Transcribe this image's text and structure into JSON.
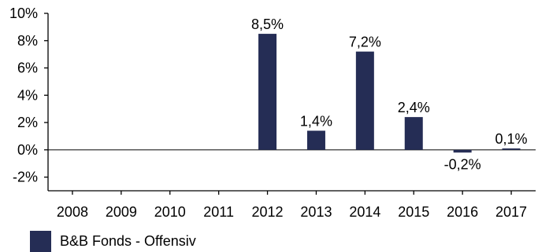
{
  "chart_data": {
    "type": "bar",
    "categories": [
      "2008",
      "2009",
      "2010",
      "2011",
      "2012",
      "2013",
      "2014",
      "2015",
      "2016",
      "2017"
    ],
    "series": [
      {
        "name": "B&B Fonds - Offensiv",
        "values": [
          null,
          null,
          null,
          null,
          8.5,
          1.4,
          7.2,
          2.4,
          -0.2,
          0.1
        ],
        "labels": [
          "",
          "",
          "",
          "",
          "8,5%",
          "1,4%",
          "7,2%",
          "2,4%",
          "-0,2%",
          "0,1%"
        ]
      }
    ],
    "ylim": [
      -3,
      10
    ],
    "yticks": [
      10,
      8,
      6,
      4,
      2,
      0,
      -2
    ],
    "ytick_labels": [
      "10%",
      "8%",
      "6%",
      "4%",
      "2%",
      "0%",
      "-2%"
    ],
    "grid": false,
    "legend_position": "bottom-left",
    "bar_color": "#252d55"
  }
}
